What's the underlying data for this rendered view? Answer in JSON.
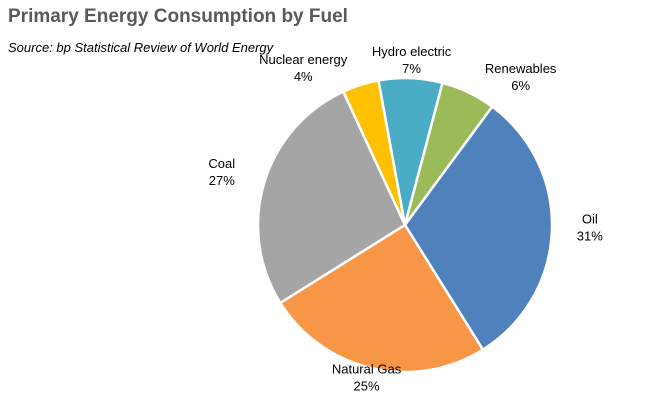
{
  "chart_data": {
    "type": "pie",
    "title": "Primary Energy Consumption by Fuel",
    "subtitle": "Source: bp Statistical Review of World Energy",
    "slices": [
      {
        "label": "Coal",
        "pct_label": "27%",
        "value": 27,
        "color": "#A5A5A5"
      },
      {
        "label": "Nuclear energy",
        "pct_label": "4%",
        "value": 4,
        "color": "#FFC000"
      },
      {
        "label": "Hydro electric",
        "pct_label": "7%",
        "value": 7,
        "color": "#4BACC6"
      },
      {
        "label": "Renewables",
        "pct_label": "6%",
        "value": 6,
        "color": "#9BBB59"
      },
      {
        "label": "Oil",
        "pct_label": "31%",
        "value": 31,
        "color": "#4F81BD"
      },
      {
        "label": "Natural Gas",
        "pct_label": "25%",
        "value": 25,
        "color": "#F79646"
      }
    ],
    "legend": "none",
    "label_position": "outside"
  }
}
